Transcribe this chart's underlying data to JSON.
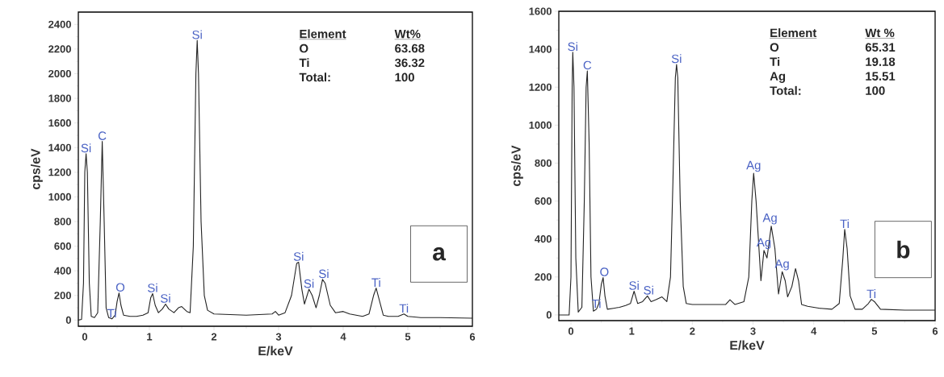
{
  "chart_data": [
    {
      "type": "line",
      "xlabel": "E/keV",
      "ylabel": "cps/eV",
      "xlim": [
        -0.1,
        6
      ],
      "ylim": [
        -50,
        2500
      ],
      "xticks": [
        0,
        1,
        2,
        3,
        4,
        5,
        6
      ],
      "yticks": [
        0,
        200,
        400,
        600,
        800,
        1000,
        1200,
        1400,
        1600,
        1800,
        2000,
        2200,
        2400
      ],
      "series": [
        {
          "color": "#222222",
          "x": [
            -0.1,
            -0.05,
            -0.02,
            0.0,
            0.02,
            0.04,
            0.07,
            0.1,
            0.15,
            0.2,
            0.24,
            0.27,
            0.3,
            0.33,
            0.37,
            0.42,
            0.47,
            0.5,
            0.53,
            0.56,
            0.6,
            0.7,
            0.8,
            0.9,
            0.98,
            1.02,
            1.05,
            1.09,
            1.14,
            1.2,
            1.25,
            1.3,
            1.38,
            1.45,
            1.5,
            1.58,
            1.63,
            1.68,
            1.72,
            1.74,
            1.76,
            1.8,
            1.85,
            1.9,
            2.0,
            2.5,
            2.9,
            2.95,
            3.0,
            3.1,
            3.2,
            3.28,
            3.31,
            3.36,
            3.4,
            3.47,
            3.52,
            3.58,
            3.63,
            3.68,
            3.72,
            3.8,
            3.88,
            4.0,
            4.1,
            4.3,
            4.4,
            4.47,
            4.51,
            4.56,
            4.62,
            4.7,
            4.85,
            4.94,
            5.0,
            5.2,
            5.5,
            6.0
          ],
          "values": [
            0,
            5,
            300,
            1200,
            1350,
            1200,
            300,
            30,
            20,
            60,
            800,
            1450,
            800,
            100,
            20,
            10,
            40,
            150,
            220,
            120,
            40,
            30,
            30,
            40,
            60,
            180,
            215,
            120,
            60,
            90,
            130,
            90,
            60,
            100,
            110,
            70,
            60,
            600,
            2000,
            2270,
            2000,
            800,
            200,
            80,
            50,
            40,
            50,
            70,
            40,
            60,
            200,
            460,
            470,
            250,
            130,
            250,
            200,
            100,
            200,
            330,
            300,
            120,
            60,
            70,
            50,
            30,
            50,
            200,
            260,
            160,
            40,
            30,
            30,
            50,
            30,
            20,
            20,
            15
          ]
        }
      ],
      "annotations": [
        {
          "text": "Si",
          "x": 0.02,
          "y": 1350
        },
        {
          "text": "C",
          "x": 0.27,
          "y": 1450
        },
        {
          "text": "Ti",
          "x": 0.42,
          "y": 10
        },
        {
          "text": "O",
          "x": 0.55,
          "y": 220
        },
        {
          "text": "Si",
          "x": 1.05,
          "y": 215
        },
        {
          "text": "Si",
          "x": 1.25,
          "y": 130
        },
        {
          "text": "Si",
          "x": 1.74,
          "y": 2270
        },
        {
          "text": "Si",
          "x": 3.31,
          "y": 470
        },
        {
          "text": "Si",
          "x": 3.47,
          "y": 250
        },
        {
          "text": "Si",
          "x": 3.7,
          "y": 330
        },
        {
          "text": "Ti",
          "x": 4.51,
          "y": 260
        },
        {
          "text": "Ti",
          "x": 4.94,
          "y": 50
        },
        "Element",
        "Wt%",
        "O",
        "63.68",
        "Ti",
        "36.32",
        "Total:",
        "100",
        "a"
      ]
    },
    {
      "type": "line",
      "xlabel": "E/keV",
      "ylabel": "cps/eV",
      "xlim": [
        -0.2,
        6
      ],
      "ylim": [
        -30,
        1600
      ],
      "xticks": [
        0,
        1,
        2,
        3,
        4,
        5,
        6
      ],
      "yticks": [
        0,
        200,
        400,
        600,
        800,
        1000,
        1200,
        1400,
        1600
      ],
      "series": [
        {
          "color": "#222222",
          "x": [
            -0.2,
            -0.03,
            0.0,
            0.02,
            0.03,
            0.05,
            0.08,
            0.12,
            0.18,
            0.22,
            0.25,
            0.27,
            0.3,
            0.33,
            0.37,
            0.42,
            0.46,
            0.5,
            0.53,
            0.56,
            0.6,
            0.7,
            0.8,
            0.9,
            0.98,
            1.04,
            1.1,
            1.18,
            1.26,
            1.32,
            1.4,
            1.5,
            1.58,
            1.64,
            1.68,
            1.72,
            1.74,
            1.76,
            1.8,
            1.85,
            1.9,
            2.0,
            2.3,
            2.55,
            2.62,
            2.7,
            2.85,
            2.93,
            2.98,
            3.01,
            3.05,
            3.13,
            3.18,
            3.23,
            3.3,
            3.36,
            3.42,
            3.48,
            3.53,
            3.57,
            3.64,
            3.7,
            3.75,
            3.8,
            3.9,
            4.1,
            4.3,
            4.42,
            4.48,
            4.51,
            4.55,
            4.6,
            4.68,
            4.8,
            4.9,
            4.95,
            5.0,
            5.1,
            5.5,
            6.0
          ],
          "values": [
            0,
            0,
            200,
            1200,
            1384,
            1200,
            300,
            15,
            40,
            600,
            1200,
            1286,
            900,
            200,
            20,
            30,
            60,
            160,
            197,
            100,
            30,
            35,
            40,
            50,
            60,
            125,
            60,
            70,
            100,
            70,
            80,
            95,
            70,
            200,
            700,
            1250,
            1320,
            1250,
            600,
            150,
            60,
            55,
            55,
            55,
            80,
            55,
            70,
            200,
            600,
            747,
            600,
            180,
            340,
            300,
            468,
            350,
            110,
            228,
            180,
            95,
            150,
            244,
            180,
            55,
            45,
            35,
            30,
            60,
            300,
            451,
            350,
            100,
            30,
            30,
            60,
            82,
            70,
            30,
            25,
            25
          ]
        }
      ],
      "annotations": [
        {
          "text": "Si",
          "x": 0.03,
          "y": 1384
        },
        {
          "text": "C",
          "x": 0.27,
          "y": 1286
        },
        {
          "text": "Ti",
          "x": 0.42,
          "y": 30
        },
        {
          "text": "O",
          "x": 0.55,
          "y": 197
        },
        {
          "text": "Si",
          "x": 1.04,
          "y": 125
        },
        {
          "text": "Si",
          "x": 1.28,
          "y": 100
        },
        {
          "text": "Si",
          "x": 1.74,
          "y": 1320
        },
        {
          "text": "Ag",
          "x": 3.01,
          "y": 747
        },
        {
          "text": "Ag",
          "x": 3.28,
          "y": 470
        },
        {
          "text": "Ag",
          "x": 3.18,
          "y": 340
        },
        {
          "text": "Ag",
          "x": 3.48,
          "y": 228
        },
        {
          "text": "Ti",
          "x": 4.51,
          "y": 451
        },
        {
          "text": "Ti",
          "x": 4.95,
          "y": 82
        },
        "Element",
        "Wt %",
        "O",
        "65.31",
        "Ti",
        "19.18",
        "Ag",
        "15.51",
        "Total:",
        "100",
        "b"
      ]
    }
  ]
}
